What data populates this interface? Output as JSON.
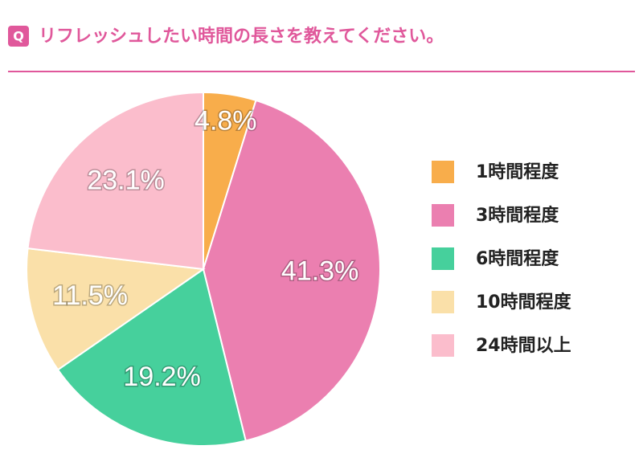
{
  "chart_data": {
    "type": "pie",
    "badge": "Q",
    "title": "リフレッシュしたい時間の長さを教えてください。",
    "categories": [
      "1時間程度",
      "3時間程度",
      "6時間程度",
      "10時間程度",
      "24時間以上"
    ],
    "values": [
      4.8,
      41.3,
      19.2,
      11.5,
      23.1
    ],
    "value_labels": [
      "4.8%",
      "41.3%",
      "19.2%",
      "11.5%",
      "23.1%"
    ],
    "colors": [
      "#f8ad4b",
      "#eb7fb0",
      "#46d09c",
      "#fae0a9",
      "#fbbdcc"
    ],
    "legend": "right"
  }
}
